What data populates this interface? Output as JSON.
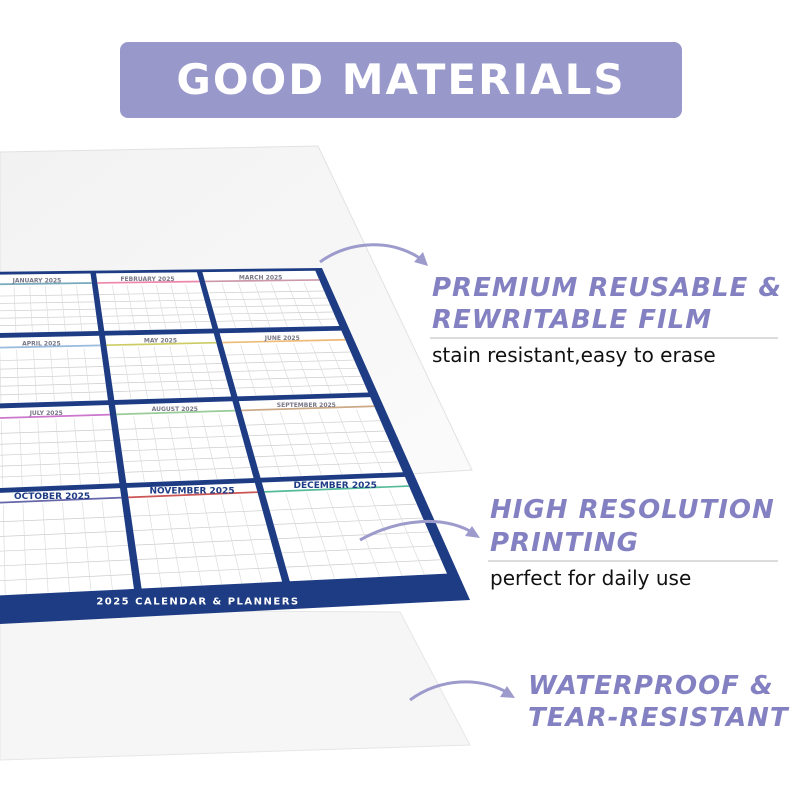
{
  "header": {
    "title": "GOOD MATERIALS"
  },
  "features": [
    {
      "heading": [
        "PREMIUM REUSABLE &",
        "REWRITABLE FILM"
      ],
      "detail": "stain resistant,easy to erase"
    },
    {
      "heading": [
        "HIGH RESOLUTION",
        "PRINTING"
      ],
      "detail": "perfect for daily use"
    },
    {
      "heading": [
        "WATERPROOF &",
        "TEAR-RESISTANT"
      ]
    }
  ],
  "calendar": {
    "months": [
      "JANUARY 2025",
      "FEBRUARY 2025",
      "MARCH 2025",
      "APRIL 2025",
      "MAY 2025",
      "JUNE 2025",
      "JULY 2025",
      "AUGUST 2025",
      "SEPTEMBER 2025",
      "OCTOBER 2025",
      "NOVEMBER 2025",
      "DECEMBER 2025"
    ],
    "footer": "2025 CALENDAR & PLANNERS"
  }
}
